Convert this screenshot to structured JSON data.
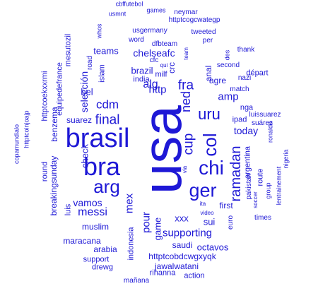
{
  "colors": {
    "text": "#1e18d6",
    "background": "#ffffff"
  },
  "words": [
    "usa",
    "brasil",
    "bra",
    "arg",
    "chi",
    "ger",
    "uru",
    "col",
    "fra",
    "cdm",
    "final",
    "vamos",
    "messi",
    "pour",
    "supporting",
    "ramadan",
    "cup",
    "ned",
    "alg",
    "http",
    "chelseafc",
    "brazil",
    "teams",
    "today",
    "first",
    "game",
    "amp",
    "mex",
    "xxx",
    "sui",
    "selección",
    "suarez",
    "check",
    "muslim",
    "maracana",
    "arabia",
    "saudi",
    "octavos",
    "httptcobdcwgxyqk",
    "jawalwatani",
    "indonesia",
    "rihanna",
    "action",
    "mañana",
    "drewg",
    "support",
    "breakingsunday",
    "round",
    "luis",
    "benzema",
    "equipedefrance",
    "mesutozil",
    "httptcoekxxrmi",
    "httptcoinjoajp",
    "copamundialo",
    "cbffutebol",
    "games",
    "neymar",
    "usmnt",
    "httptcogcwategp",
    "whos",
    "usgermany",
    "tweeted",
    "dfbteam",
    "word",
    "per",
    "second",
    "des",
    "thank",
    "nazi",
    "team",
    "match",
    "cfc",
    "qui",
    "milf",
    "anal",
    "agre",
    "départ",
    "crc",
    "nga",
    "ipad",
    "luissuarez",
    "suárez",
    "ronaldo",
    "argentina",
    "pakistan",
    "route",
    "lentrainement",
    "nigeria",
    "group",
    "soccer",
    "times",
    "euro",
    "video",
    "ita",
    "via",
    "india",
    "islam",
    "road",
    "bel"
  ]
}
